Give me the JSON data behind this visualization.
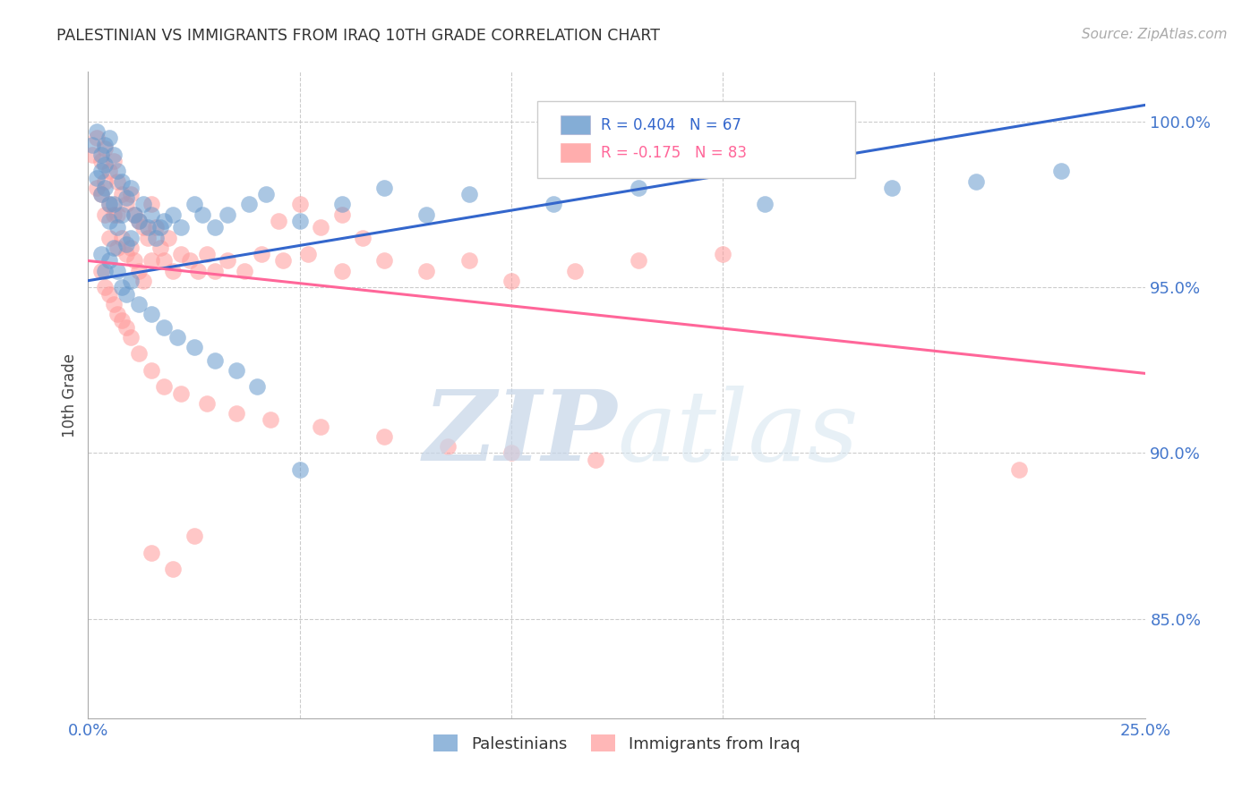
{
  "title": "PALESTINIAN VS IMMIGRANTS FROM IRAQ 10TH GRADE CORRELATION CHART",
  "source": "Source: ZipAtlas.com",
  "ylabel": "10th Grade",
  "ytick_labels": [
    "85.0%",
    "90.0%",
    "95.0%",
    "100.0%"
  ],
  "ytick_values": [
    0.85,
    0.9,
    0.95,
    1.0
  ],
  "xlim": [
    0.0,
    0.25
  ],
  "ylim": [
    0.82,
    1.015
  ],
  "blue_color": "#6699CC",
  "pink_color": "#FF9999",
  "blue_line_color": "#3366CC",
  "pink_line_color": "#FF6699",
  "blue_line_x0": 0.0,
  "blue_line_x1": 0.25,
  "blue_line_y0": 0.952,
  "blue_line_y1": 1.005,
  "pink_line_x0": 0.0,
  "pink_line_x1": 0.25,
  "pink_line_y0": 0.958,
  "pink_line_y1": 0.924,
  "blue_scatter_x": [
    0.001,
    0.002,
    0.002,
    0.003,
    0.003,
    0.003,
    0.004,
    0.004,
    0.004,
    0.005,
    0.005,
    0.005,
    0.006,
    0.006,
    0.007,
    0.007,
    0.008,
    0.008,
    0.009,
    0.009,
    0.01,
    0.01,
    0.011,
    0.012,
    0.013,
    0.014,
    0.015,
    0.016,
    0.017,
    0.018,
    0.02,
    0.022,
    0.025,
    0.027,
    0.03,
    0.033,
    0.038,
    0.042,
    0.05,
    0.06,
    0.07,
    0.08,
    0.09,
    0.11,
    0.13,
    0.16,
    0.19,
    0.21,
    0.23,
    0.003,
    0.004,
    0.005,
    0.006,
    0.007,
    0.008,
    0.009,
    0.01,
    0.012,
    0.015,
    0.018,
    0.021,
    0.025,
    0.03,
    0.035,
    0.04,
    0.05
  ],
  "blue_scatter_y": [
    0.993,
    0.997,
    0.983,
    0.99,
    0.985,
    0.978,
    0.993,
    0.987,
    0.98,
    0.975,
    0.995,
    0.97,
    0.99,
    0.975,
    0.985,
    0.968,
    0.982,
    0.972,
    0.977,
    0.963,
    0.98,
    0.965,
    0.972,
    0.97,
    0.975,
    0.968,
    0.972,
    0.965,
    0.968,
    0.97,
    0.972,
    0.968,
    0.975,
    0.972,
    0.968,
    0.972,
    0.975,
    0.978,
    0.97,
    0.975,
    0.98,
    0.972,
    0.978,
    0.975,
    0.98,
    0.975,
    0.98,
    0.982,
    0.985,
    0.96,
    0.955,
    0.958,
    0.962,
    0.955,
    0.95,
    0.948,
    0.952,
    0.945,
    0.942,
    0.938,
    0.935,
    0.932,
    0.928,
    0.925,
    0.92,
    0.895
  ],
  "pink_scatter_x": [
    0.001,
    0.002,
    0.002,
    0.003,
    0.003,
    0.004,
    0.004,
    0.004,
    0.005,
    0.005,
    0.005,
    0.006,
    0.006,
    0.007,
    0.007,
    0.007,
    0.008,
    0.008,
    0.009,
    0.009,
    0.01,
    0.01,
    0.011,
    0.011,
    0.012,
    0.012,
    0.013,
    0.013,
    0.014,
    0.015,
    0.015,
    0.016,
    0.017,
    0.018,
    0.019,
    0.02,
    0.022,
    0.024,
    0.026,
    0.028,
    0.03,
    0.033,
    0.037,
    0.041,
    0.046,
    0.052,
    0.06,
    0.07,
    0.08,
    0.09,
    0.1,
    0.115,
    0.13,
    0.15,
    0.003,
    0.004,
    0.005,
    0.006,
    0.007,
    0.008,
    0.009,
    0.01,
    0.012,
    0.015,
    0.018,
    0.022,
    0.028,
    0.035,
    0.043,
    0.055,
    0.07,
    0.085,
    0.1,
    0.12,
    0.045,
    0.055,
    0.065,
    0.22,
    0.05,
    0.06,
    0.015,
    0.02,
    0.025
  ],
  "pink_scatter_y": [
    0.99,
    0.995,
    0.98,
    0.988,
    0.978,
    0.992,
    0.982,
    0.972,
    0.985,
    0.975,
    0.965,
    0.988,
    0.972,
    0.982,
    0.972,
    0.962,
    0.978,
    0.965,
    0.975,
    0.96,
    0.978,
    0.962,
    0.972,
    0.958,
    0.97,
    0.955,
    0.968,
    0.952,
    0.965,
    0.975,
    0.958,
    0.968,
    0.962,
    0.958,
    0.965,
    0.955,
    0.96,
    0.958,
    0.955,
    0.96,
    0.955,
    0.958,
    0.955,
    0.96,
    0.958,
    0.96,
    0.955,
    0.958,
    0.955,
    0.958,
    0.952,
    0.955,
    0.958,
    0.96,
    0.955,
    0.95,
    0.948,
    0.945,
    0.942,
    0.94,
    0.938,
    0.935,
    0.93,
    0.925,
    0.92,
    0.918,
    0.915,
    0.912,
    0.91,
    0.908,
    0.905,
    0.902,
    0.9,
    0.898,
    0.97,
    0.968,
    0.965,
    0.895,
    0.975,
    0.972,
    0.87,
    0.865,
    0.875
  ]
}
